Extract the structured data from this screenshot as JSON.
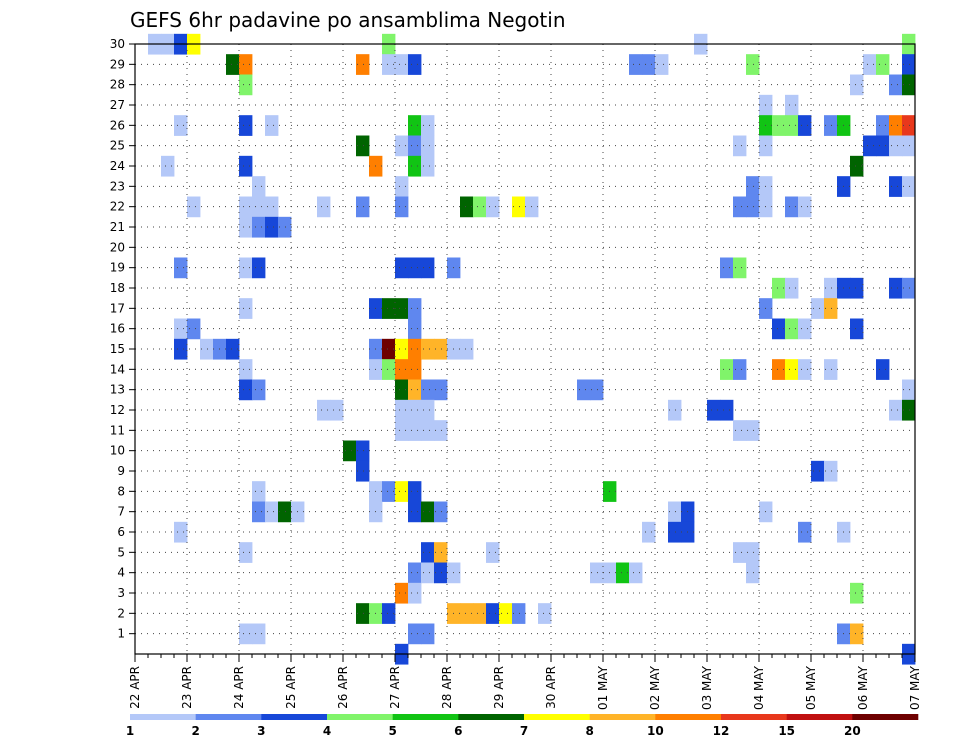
{
  "chart_data": {
    "type": "heatmap",
    "title": "GEFS 6hr padavine po ansamblima Negotin",
    "ylabel": "",
    "xlabel": "",
    "y_ticks": [
      "1",
      "2",
      "3",
      "4",
      "5",
      "6",
      "7",
      "8",
      "9",
      "10",
      "11",
      "12",
      "13",
      "14",
      "15",
      "16",
      "17",
      "18",
      "19",
      "20",
      "21",
      "22",
      "23",
      "24",
      "25",
      "26",
      "27",
      "28",
      "29",
      "30"
    ],
    "ylim": [
      0,
      30
    ],
    "x_ticks": [
      "22 APR",
      "23 APR",
      "24 APR",
      "25 APR",
      "26 APR",
      "27 APR",
      "28 APR",
      "29 APR",
      "30 APR",
      "01 MAY",
      "02 MAY",
      "03 MAY",
      "04 MAY",
      "05 MAY",
      "06 MAY",
      "07 MAY"
    ],
    "x_steps_per_day": 4,
    "colorbar": {
      "labels": [
        "1",
        "2",
        "3",
        "4",
        "5",
        "6",
        "7",
        "8",
        "10",
        "12",
        "15",
        "20"
      ],
      "colors": [
        "#b4c8f8",
        "#5f87ef",
        "#1747d8",
        "#80f46a",
        "#11c414",
        "#006400",
        "#ffff00",
        "#ffb428",
        "#ff7f00",
        "#e8381c",
        "#c01010",
        "#6e0000"
      ]
    },
    "cells": [
      [
        1,
        30,
        0
      ],
      [
        2,
        30,
        0
      ],
      [
        3,
        30,
        2
      ],
      [
        4,
        30,
        6
      ],
      [
        19,
        30,
        3
      ],
      [
        43,
        30,
        0
      ],
      [
        59,
        30,
        3
      ],
      [
        7,
        29,
        5
      ],
      [
        8,
        29,
        8
      ],
      [
        17,
        29,
        8
      ],
      [
        19,
        29,
        0
      ],
      [
        20,
        29,
        0
      ],
      [
        21,
        29,
        2
      ],
      [
        38,
        29,
        1
      ],
      [
        39,
        29,
        1
      ],
      [
        40,
        29,
        0
      ],
      [
        47,
        29,
        3
      ],
      [
        56,
        29,
        0
      ],
      [
        57,
        29,
        3
      ],
      [
        59,
        29,
        2
      ],
      [
        8,
        28,
        3
      ],
      [
        55,
        28,
        0
      ],
      [
        58,
        28,
        1
      ],
      [
        59,
        28,
        5
      ],
      [
        48,
        27,
        0
      ],
      [
        50,
        27,
        0
      ],
      [
        3,
        26,
        0
      ],
      [
        8,
        26,
        2
      ],
      [
        10,
        26,
        0
      ],
      [
        21,
        26,
        4
      ],
      [
        22,
        26,
        0
      ],
      [
        48,
        26,
        4
      ],
      [
        49,
        26,
        3
      ],
      [
        50,
        26,
        3
      ],
      [
        51,
        26,
        2
      ],
      [
        53,
        26,
        1
      ],
      [
        54,
        26,
        4
      ],
      [
        57,
        26,
        1
      ],
      [
        58,
        26,
        8
      ],
      [
        59,
        26,
        9
      ],
      [
        17,
        25,
        5
      ],
      [
        20,
        25,
        0
      ],
      [
        21,
        25,
        1
      ],
      [
        22,
        25,
        0
      ],
      [
        46,
        25,
        0
      ],
      [
        48,
        25,
        0
      ],
      [
        56,
        25,
        2
      ],
      [
        57,
        25,
        2
      ],
      [
        58,
        25,
        0
      ],
      [
        59,
        25,
        0
      ],
      [
        2,
        24,
        0
      ],
      [
        8,
        24,
        2
      ],
      [
        18,
        24,
        8
      ],
      [
        21,
        24,
        4
      ],
      [
        22,
        24,
        0
      ],
      [
        55,
        24,
        5
      ],
      [
        9,
        23,
        0
      ],
      [
        20,
        23,
        0
      ],
      [
        47,
        23,
        1
      ],
      [
        48,
        23,
        0
      ],
      [
        54,
        23,
        2
      ],
      [
        58,
        23,
        2
      ],
      [
        59,
        23,
        0
      ],
      [
        4,
        22,
        0
      ],
      [
        8,
        22,
        0
      ],
      [
        9,
        22,
        0
      ],
      [
        10,
        22,
        0
      ],
      [
        14,
        22,
        0
      ],
      [
        17,
        22,
        1
      ],
      [
        20,
        22,
        1
      ],
      [
        25,
        22,
        5
      ],
      [
        26,
        22,
        3
      ],
      [
        27,
        22,
        0
      ],
      [
        29,
        22,
        6
      ],
      [
        30,
        22,
        0
      ],
      [
        46,
        22,
        1
      ],
      [
        47,
        22,
        1
      ],
      [
        48,
        22,
        0
      ],
      [
        50,
        22,
        1
      ],
      [
        51,
        22,
        0
      ],
      [
        8,
        21,
        0
      ],
      [
        9,
        21,
        1
      ],
      [
        10,
        21,
        2
      ],
      [
        11,
        21,
        1
      ],
      [
        3,
        19,
        1
      ],
      [
        8,
        19,
        0
      ],
      [
        9,
        19,
        2
      ],
      [
        20,
        19,
        2
      ],
      [
        21,
        19,
        2
      ],
      [
        22,
        19,
        2
      ],
      [
        24,
        19,
        1
      ],
      [
        45,
        19,
        1
      ],
      [
        46,
        19,
        3
      ],
      [
        49,
        18,
        3
      ],
      [
        50,
        18,
        0
      ],
      [
        53,
        18,
        0
      ],
      [
        54,
        18,
        2
      ],
      [
        55,
        18,
        2
      ],
      [
        58,
        18,
        2
      ],
      [
        59,
        18,
        1
      ],
      [
        8,
        17,
        0
      ],
      [
        18,
        17,
        2
      ],
      [
        19,
        17,
        5
      ],
      [
        20,
        17,
        5
      ],
      [
        21,
        17,
        1
      ],
      [
        48,
        17,
        1
      ],
      [
        52,
        17,
        0
      ],
      [
        53,
        17,
        7
      ],
      [
        3,
        16,
        0
      ],
      [
        4,
        16,
        1
      ],
      [
        21,
        16,
        1
      ],
      [
        49,
        16,
        2
      ],
      [
        50,
        16,
        3
      ],
      [
        51,
        16,
        0
      ],
      [
        55,
        16,
        2
      ],
      [
        3,
        15,
        2
      ],
      [
        5,
        15,
        0
      ],
      [
        6,
        15,
        1
      ],
      [
        7,
        15,
        2
      ],
      [
        18,
        15,
        1
      ],
      [
        19,
        15,
        11
      ],
      [
        20,
        15,
        6
      ],
      [
        21,
        15,
        8
      ],
      [
        22,
        15,
        7
      ],
      [
        23,
        15,
        7
      ],
      [
        24,
        15,
        0
      ],
      [
        25,
        15,
        0
      ],
      [
        8,
        14,
        0
      ],
      [
        18,
        14,
        0
      ],
      [
        19,
        14,
        3
      ],
      [
        20,
        14,
        8
      ],
      [
        21,
        14,
        8
      ],
      [
        45,
        14,
        3
      ],
      [
        46,
        14,
        1
      ],
      [
        49,
        14,
        8
      ],
      [
        50,
        14,
        6
      ],
      [
        51,
        14,
        0
      ],
      [
        53,
        14,
        0
      ],
      [
        57,
        14,
        2
      ],
      [
        8,
        13,
        2
      ],
      [
        9,
        13,
        1
      ],
      [
        20,
        13,
        5
      ],
      [
        21,
        13,
        7
      ],
      [
        22,
        13,
        1
      ],
      [
        23,
        13,
        1
      ],
      [
        34,
        13,
        1
      ],
      [
        35,
        13,
        1
      ],
      [
        59,
        13,
        0
      ],
      [
        14,
        12,
        0
      ],
      [
        15,
        12,
        0
      ],
      [
        20,
        12,
        0
      ],
      [
        21,
        12,
        0
      ],
      [
        22,
        12,
        0
      ],
      [
        41,
        12,
        0
      ],
      [
        44,
        12,
        2
      ],
      [
        45,
        12,
        2
      ],
      [
        58,
        12,
        0
      ],
      [
        59,
        12,
        5
      ],
      [
        20,
        11,
        0
      ],
      [
        21,
        11,
        0
      ],
      [
        22,
        11,
        0
      ],
      [
        23,
        11,
        0
      ],
      [
        46,
        11,
        0
      ],
      [
        47,
        11,
        0
      ],
      [
        16,
        10,
        5
      ],
      [
        17,
        10,
        2
      ],
      [
        17,
        9,
        2
      ],
      [
        52,
        9,
        2
      ],
      [
        53,
        9,
        0
      ],
      [
        9,
        8,
        0
      ],
      [
        18,
        8,
        0
      ],
      [
        19,
        8,
        1
      ],
      [
        20,
        8,
        6
      ],
      [
        21,
        8,
        2
      ],
      [
        36,
        8,
        4
      ],
      [
        9,
        7,
        1
      ],
      [
        10,
        7,
        0
      ],
      [
        11,
        7,
        5
      ],
      [
        12,
        7,
        0
      ],
      [
        18,
        7,
        0
      ],
      [
        21,
        7,
        2
      ],
      [
        22,
        7,
        5
      ],
      [
        23,
        7,
        1
      ],
      [
        41,
        7,
        0
      ],
      [
        42,
        7,
        2
      ],
      [
        48,
        7,
        0
      ],
      [
        3,
        6,
        0
      ],
      [
        39,
        6,
        0
      ],
      [
        41,
        6,
        2
      ],
      [
        42,
        6,
        2
      ],
      [
        51,
        6,
        1
      ],
      [
        54,
        6,
        0
      ],
      [
        8,
        5,
        0
      ],
      [
        22,
        5,
        2
      ],
      [
        23,
        5,
        7
      ],
      [
        27,
        5,
        0
      ],
      [
        46,
        5,
        0
      ],
      [
        47,
        5,
        0
      ],
      [
        21,
        4,
        1
      ],
      [
        22,
        4,
        0
      ],
      [
        23,
        4,
        2
      ],
      [
        24,
        4,
        0
      ],
      [
        35,
        4,
        0
      ],
      [
        36,
        4,
        0
      ],
      [
        37,
        4,
        4
      ],
      [
        38,
        4,
        0
      ],
      [
        47,
        4,
        0
      ],
      [
        20,
        3,
        8
      ],
      [
        21,
        3,
        0
      ],
      [
        55,
        3,
        3
      ],
      [
        17,
        2,
        5
      ],
      [
        18,
        2,
        3
      ],
      [
        19,
        2,
        2
      ],
      [
        24,
        2,
        7
      ],
      [
        25,
        2,
        7
      ],
      [
        26,
        2,
        7
      ],
      [
        27,
        2,
        2
      ],
      [
        28,
        2,
        6
      ],
      [
        29,
        2,
        1
      ],
      [
        31,
        2,
        0
      ],
      [
        8,
        1,
        0
      ],
      [
        9,
        1,
        0
      ],
      [
        21,
        1,
        1
      ],
      [
        22,
        1,
        1
      ],
      [
        54,
        1,
        1
      ],
      [
        55,
        1,
        7
      ],
      [
        20,
        0,
        2
      ],
      [
        59,
        0,
        2
      ]
    ]
  }
}
